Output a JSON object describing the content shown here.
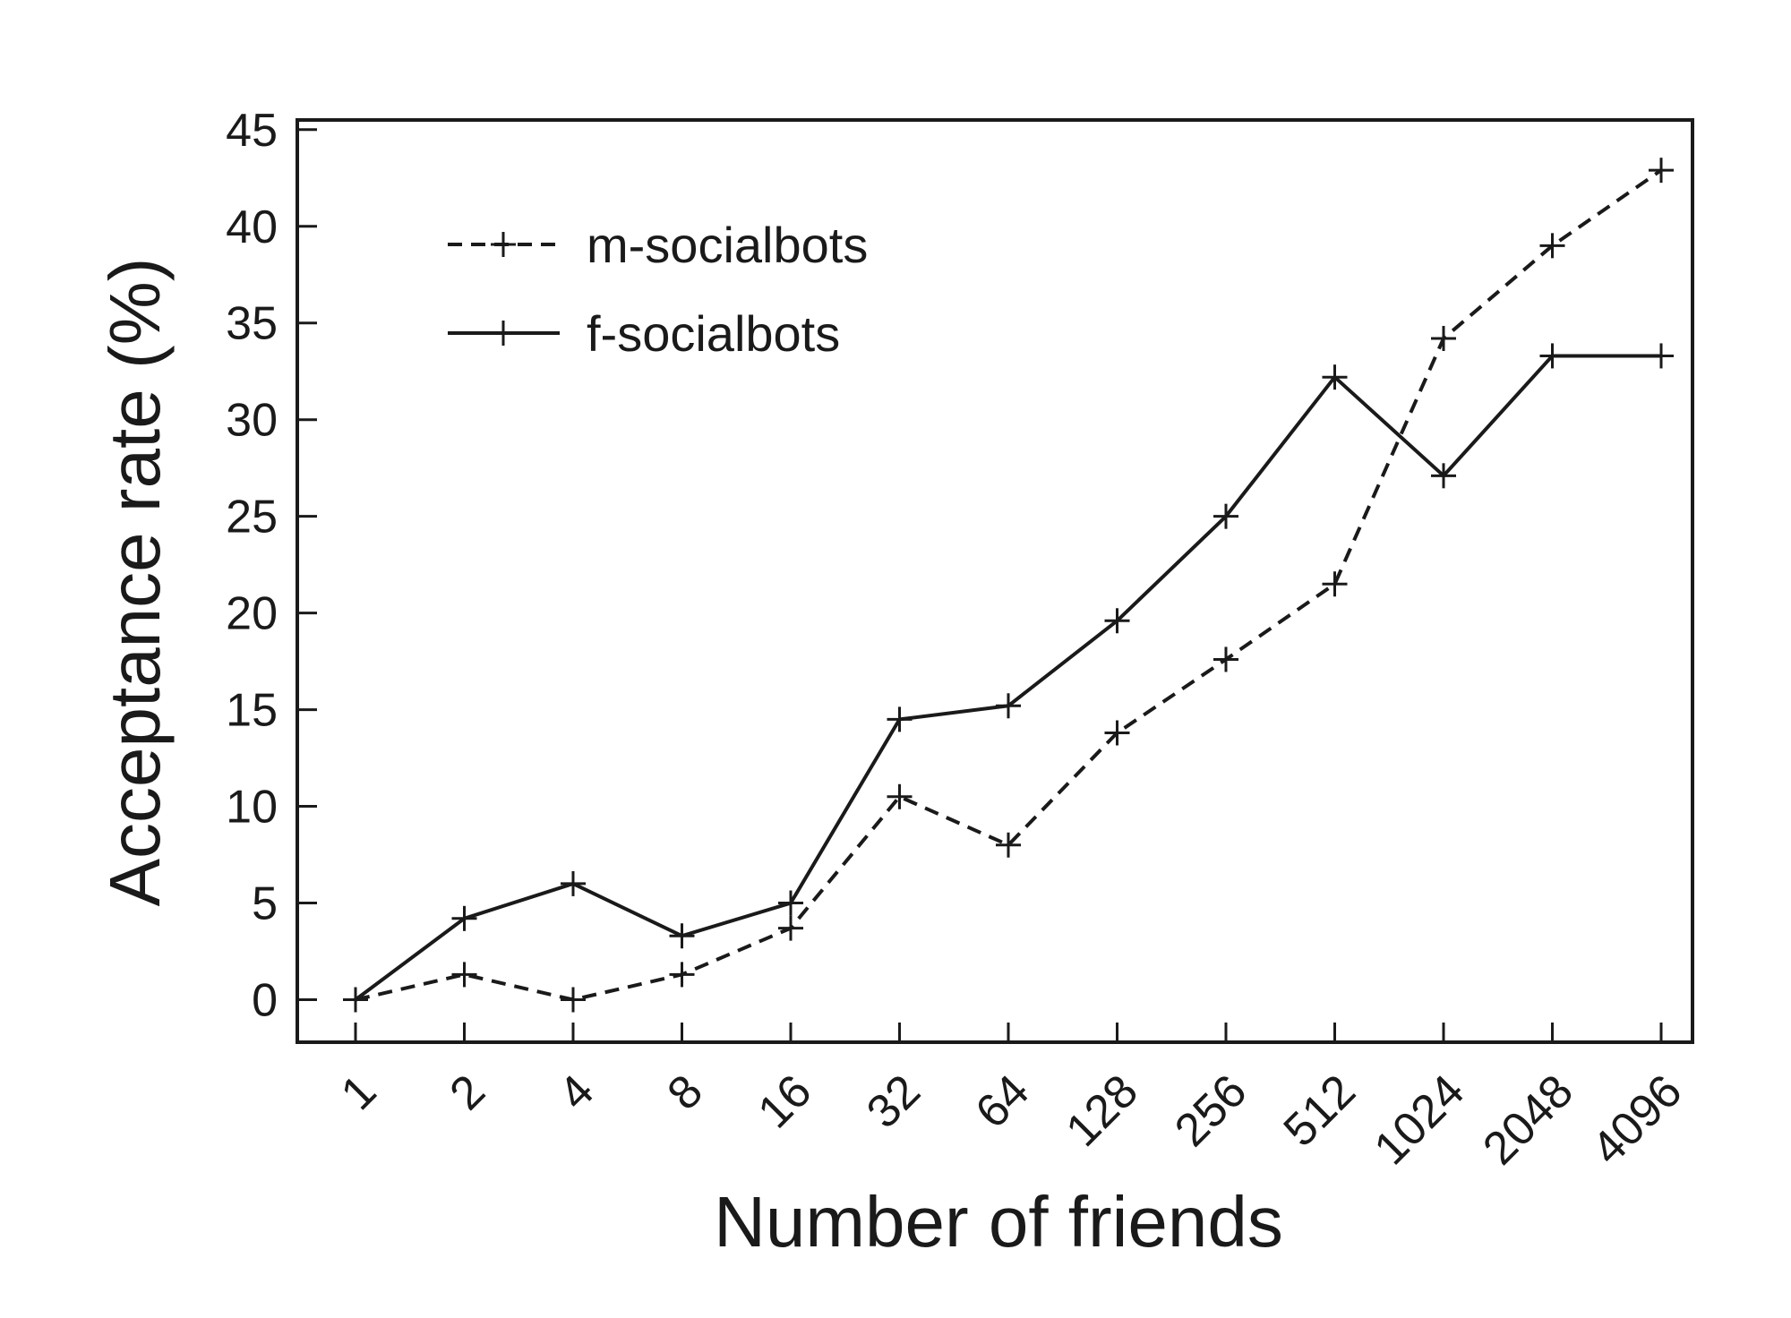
{
  "chart_data": {
    "type": "line",
    "xlabel": "Number of friends",
    "ylabel": "Acceptance rate (%)",
    "x_scale": "log2",
    "categories": [
      "1",
      "2",
      "4",
      "8",
      "16",
      "32",
      "64",
      "128",
      "256",
      "512",
      "1024",
      "2048",
      "4096"
    ],
    "ylim": [
      -2.2,
      45.5
    ],
    "yticks": [
      0,
      5,
      10,
      15,
      20,
      25,
      30,
      35,
      40,
      45
    ],
    "grid": false,
    "legend_position": "top-left",
    "series": [
      {
        "name": "m-socialbots",
        "style": "dashed",
        "marker": "plus",
        "color": "#1a1a1a",
        "values": [
          0,
          1.3,
          0,
          1.3,
          3.7,
          10.5,
          8.0,
          13.8,
          17.6,
          21.5,
          34.2,
          39.0,
          42.9
        ]
      },
      {
        "name": "f-socialbots",
        "style": "solid",
        "marker": "plus",
        "color": "#1a1a1a",
        "values": [
          0,
          4.2,
          6.0,
          3.3,
          5.0,
          14.5,
          15.2,
          19.6,
          25.0,
          32.2,
          27.1,
          33.3,
          33.3
        ]
      }
    ]
  }
}
